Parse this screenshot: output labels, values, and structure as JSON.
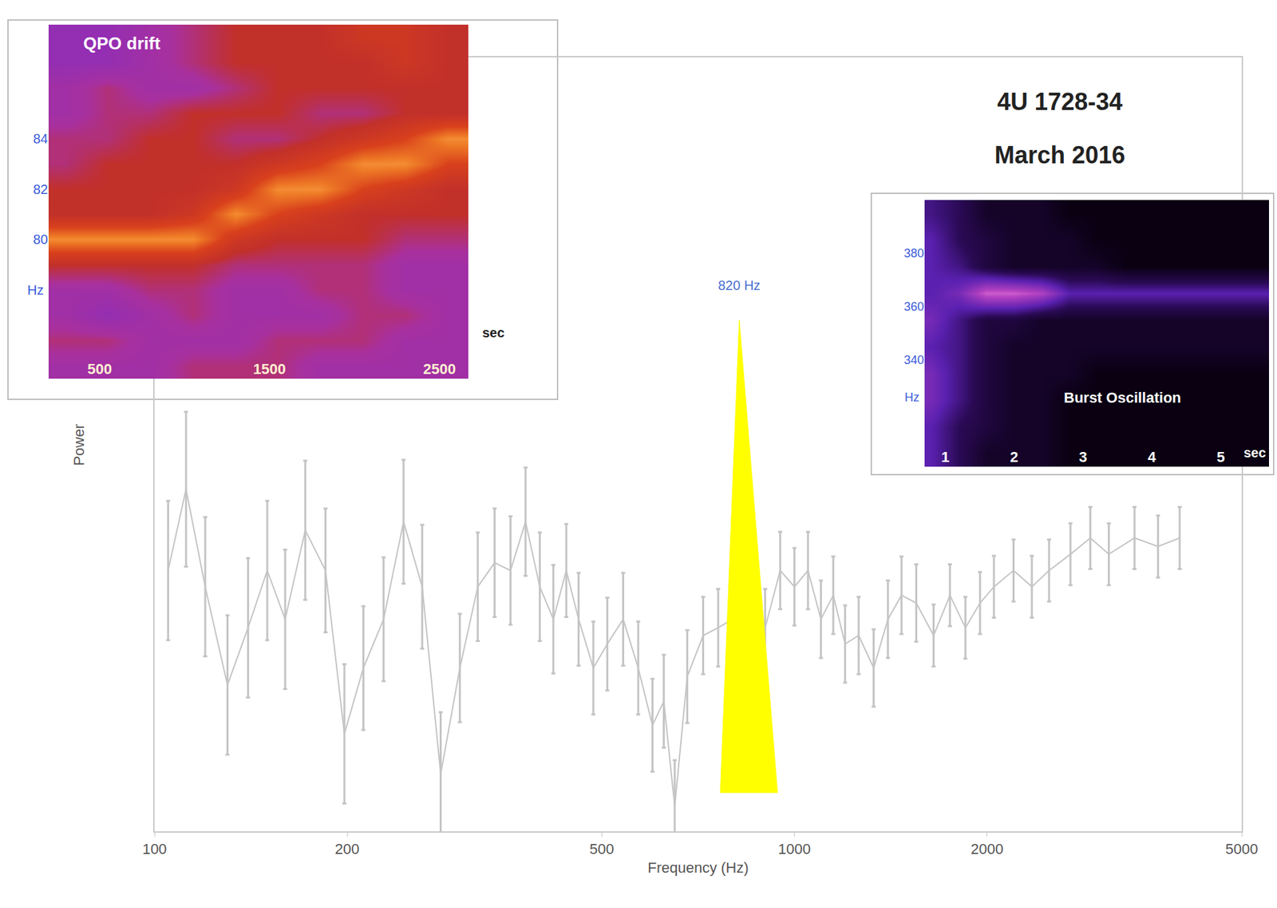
{
  "chart_data": [
    {
      "type": "line",
      "title": "4U 1728-34",
      "subtitle": "March 2016",
      "x_label": "Frequency (Hz)",
      "y_label": "Power",
      "log": "x",
      "grid": false,
      "tick_labels": "x",
      "xlim": [
        100,
        5000
      ],
      "xticks": [
        100,
        200,
        500,
        1000,
        2000,
        5000
      ],
      "ylim": [
        0,
        100
      ],
      "color": "#c4c4c4",
      "x": [
        105,
        112,
        120,
        130,
        140,
        150,
        160,
        172,
        185,
        198,
        212,
        228,
        245,
        262,
        280,
        300,
        320,
        340,
        360,
        380,
        400,
        420,
        440,
        460,
        485,
        510,
        540,
        570,
        600,
        625,
        650,
        680,
        720,
        760,
        800,
        850,
        900,
        950,
        1000,
        1050,
        1100,
        1150,
        1200,
        1260,
        1330,
        1400,
        1470,
        1550,
        1650,
        1750,
        1850,
        1950,
        2050,
        2200,
        2350,
        2500,
        2700,
        2900,
        3100,
        3400,
        3700,
        4000
      ],
      "values": [
        33.7,
        44.2,
        31.6,
        18.9,
        26.3,
        33.7,
        27.4,
        38.9,
        33.7,
        12.6,
        21.1,
        27.4,
        40,
        31.6,
        7.4,
        21.1,
        31.6,
        34.7,
        33.7,
        40,
        31.6,
        27.4,
        33.7,
        27.4,
        21.1,
        24.2,
        27.4,
        21.1,
        13.7,
        16.8,
        3.2,
        20,
        25.3,
        26.3,
        27.4,
        25.3,
        26.3,
        33.7,
        31.6,
        33.7,
        27.4,
        30.5,
        24.2,
        25.3,
        21.1,
        27.4,
        30.5,
        29.5,
        25.3,
        30.5,
        26.3,
        29.5,
        31.6,
        33.7,
        31.6,
        33.7,
        35.8,
        37.9,
        35.8,
        37.9,
        36.8,
        37.9
      ],
      "errors": [
        9,
        10,
        9,
        9,
        9,
        9,
        9,
        9,
        8,
        9,
        8,
        8,
        8,
        8,
        8,
        7,
        7,
        7,
        7,
        7,
        7,
        7,
        6,
        6,
        6,
        6,
        6,
        6,
        6,
        6,
        6,
        6,
        5,
        5,
        5,
        5,
        5,
        5,
        5,
        5,
        5,
        5,
        5,
        5,
        5,
        5,
        5,
        5,
        4,
        4,
        4,
        4,
        4,
        4,
        4,
        4,
        4,
        4,
        4,
        4,
        4,
        4
      ],
      "peak": {
        "label": "820 Hz",
        "x": 820,
        "x_range": [
          766,
          941
        ],
        "y_range": [
          5,
          66
        ],
        "color": "#ffff00"
      }
    },
    {
      "type": "heatmap",
      "title": "QPO drift",
      "x_label": "sec",
      "y_label": "Hz",
      "xlim": [
        200,
        2670
      ],
      "xticks": [
        500,
        1500,
        2500
      ],
      "ylim": [
        74.5,
        88.5
      ],
      "yticks": [
        80,
        82,
        84
      ],
      "zlim": [
        0,
        10
      ],
      "x": [
        300,
        550,
        800,
        1050,
        1300,
        1550,
        1800,
        2050,
        2300,
        2550
      ],
      "y": [
        75,
        76,
        77,
        78,
        79,
        80,
        81,
        82,
        83,
        84,
        85,
        86,
        87,
        88
      ],
      "cells": [
        [
          3,
          3,
          3,
          4,
          4,
          4,
          3,
          3,
          3,
          3
        ],
        [
          4,
          4,
          3,
          3,
          3,
          4,
          4,
          4,
          3,
          3
        ],
        [
          3,
          2,
          3,
          4,
          3,
          3,
          3,
          4,
          4,
          3
        ],
        [
          3,
          3,
          4,
          4,
          3,
          3,
          4,
          4,
          3,
          3
        ],
        [
          5,
          5,
          5,
          5,
          4,
          4,
          4,
          4,
          3,
          3
        ],
        [
          9,
          9,
          9,
          9,
          6,
          5,
          5,
          5,
          4,
          4
        ],
        [
          5,
          5,
          5,
          6,
          9,
          7,
          6,
          5,
          5,
          5
        ],
        [
          5,
          5,
          5,
          5,
          6,
          9,
          9,
          7,
          6,
          5
        ],
        [
          4,
          5,
          5,
          5,
          5,
          6,
          7,
          9,
          9,
          7
        ],
        [
          4,
          4,
          5,
          5,
          4,
          4,
          5,
          6,
          7,
          9
        ],
        [
          3,
          4,
          4,
          5,
          5,
          5,
          4,
          4,
          5,
          5
        ],
        [
          3,
          4,
          3,
          3,
          4,
          5,
          5,
          5,
          5,
          5
        ],
        [
          2,
          2,
          3,
          4,
          5,
          5,
          5,
          5,
          6,
          5
        ],
        [
          2,
          2,
          3,
          4,
          5,
          5,
          5,
          6,
          6,
          5
        ]
      ]
    },
    {
      "type": "heatmap",
      "title": "Burst Oscillation",
      "x_label": "sec",
      "y_label": "Hz",
      "xlim": [
        0.7,
        5.7
      ],
      "xticks": [
        1,
        2,
        3,
        4,
        5
      ],
      "ylim": [
        300,
        400
      ],
      "yticks": [
        340,
        360,
        380
      ],
      "zlim": [
        0,
        10
      ],
      "x": [
        0.8,
        1.2,
        1.6,
        2.0,
        2.4,
        2.8,
        3.2,
        3.6,
        4.0,
        4.4,
        4.8,
        5.2,
        5.6
      ],
      "y": [
        305,
        315,
        325,
        335,
        345,
        355,
        365,
        375,
        385,
        395
      ],
      "cells": [
        [
          5,
          3,
          1,
          1,
          1,
          0,
          0,
          0,
          0,
          0,
          0,
          0,
          0
        ],
        [
          5,
          3,
          2,
          1,
          1,
          0,
          0,
          0,
          0,
          0,
          0,
          0,
          0
        ],
        [
          6,
          4,
          2,
          1,
          1,
          0,
          0,
          0,
          0,
          0,
          0,
          0,
          0
        ],
        [
          6,
          4,
          2,
          1,
          1,
          1,
          0,
          0,
          0,
          0,
          0,
          0,
          0
        ],
        [
          5,
          4,
          2,
          1,
          1,
          1,
          1,
          1,
          1,
          1,
          1,
          1,
          1
        ],
        [
          6,
          4,
          2,
          2,
          1,
          1,
          1,
          1,
          1,
          1,
          1,
          1,
          1
        ],
        [
          5,
          6,
          9,
          9,
          8,
          5,
          5,
          5,
          5,
          5,
          5,
          5,
          5
        ],
        [
          5,
          4,
          2,
          1,
          1,
          1,
          1,
          0,
          0,
          0,
          0,
          0,
          0
        ],
        [
          5,
          3,
          2,
          1,
          1,
          1,
          0,
          0,
          0,
          0,
          0,
          0,
          0
        ],
        [
          4,
          3,
          1,
          1,
          1,
          0,
          0,
          0,
          0,
          0,
          0,
          0,
          0
        ]
      ]
    }
  ]
}
